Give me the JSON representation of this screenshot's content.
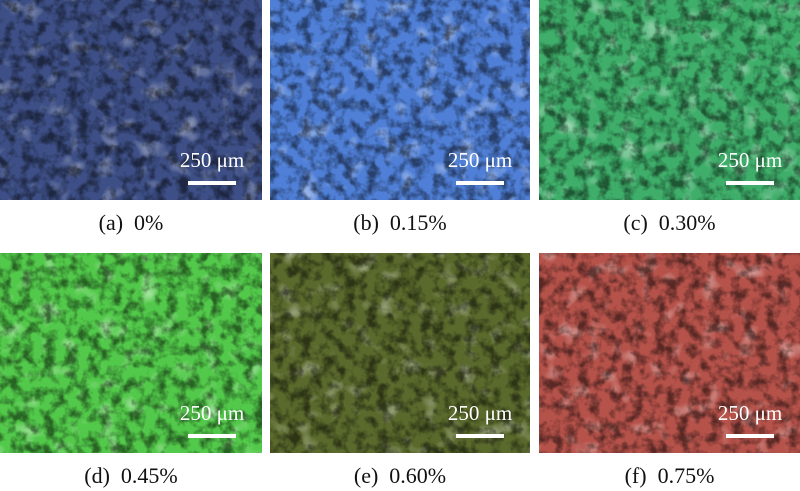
{
  "panels": [
    {
      "scale": "250 μm",
      "caption": "(a)  0%"
    },
    {
      "scale": "250 μm",
      "caption": "(b)  0.15%"
    },
    {
      "scale": "250 μm",
      "caption": "(c)  0.30%"
    },
    {
      "scale": "250 μm",
      "caption": "(d)  0.45%"
    },
    {
      "scale": "250 μm",
      "caption": "(e)  0.60%"
    },
    {
      "scale": "250 μm",
      "caption": "(f)  0.75%"
    }
  ]
}
